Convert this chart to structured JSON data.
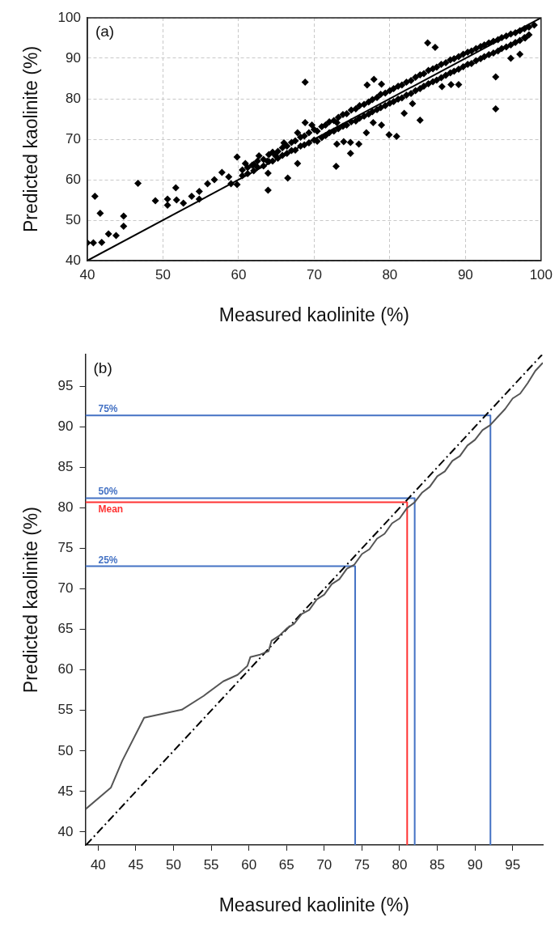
{
  "chart_data": [
    {
      "type": "scatter",
      "xlabel": "Measured kaolinite (%)",
      "ylabel": "Predicted kaolinite (%)",
      "xlim": [
        40,
        100
      ],
      "xticks": [
        40,
        50,
        60,
        70,
        80,
        90,
        100
      ],
      "ylim": [
        40,
        100
      ],
      "yticks": [
        40,
        50,
        60,
        70,
        80,
        90,
        100
      ],
      "grid": true,
      "legend": false,
      "marker": "diamond",
      "annotations": [
        "(a)"
      ],
      "series": [
        {
          "color": "#000000",
          "x": [
            40,
            40.8,
            41.9,
            41,
            41.7,
            42.8,
            43.8,
            44.8,
            44.8,
            46.7,
            49,
            50.6,
            50.6,
            51.7,
            51.8,
            52.7,
            53.8,
            54.8,
            54.8,
            55.9,
            56.8,
            57.8,
            58.7,
            59,
            59.8,
            59.8,
            60.9,
            61.8,
            62.7,
            63.8,
            63.9,
            63.9,
            64.9,
            66,
            66.5,
            67.8,
            67.8,
            68.8,
            68.8,
            69.7,
            73,
            73,
            72.9,
            73.9,
            74.8,
            75.9,
            74.8,
            76.9,
            77,
            77.9,
            78.9,
            77.8,
            78.9,
            79.9,
            80.9,
            81.9,
            83,
            84,
            85,
            86,
            86.9,
            88.1,
            89.1,
            94,
            94,
            96,
            97.2,
            97.9,
            99.1,
            60.5,
            61.2,
            62,
            62.5,
            63.3,
            64,
            64.5,
            65.2,
            65.8,
            66.4,
            67,
            67.5,
            68.2,
            68.7,
            69.3,
            70,
            70.4,
            71,
            71.5,
            72,
            72.6,
            73.2,
            73.8,
            74.3,
            74.9,
            75.5,
            76,
            76.6,
            77.2,
            77.7,
            78.3,
            78.8,
            79.4,
            80,
            80.5,
            81.1,
            81.6,
            82.2,
            82.8,
            83.4,
            84,
            84.5,
            85.1,
            85.7,
            86.2,
            86.8,
            87.4,
            88,
            88.5,
            89.1,
            89.7,
            90.3,
            90.8,
            91.4,
            92,
            92.5,
            93.1,
            93.7,
            94.3,
            94.8,
            95.4,
            96,
            96.6,
            97.2,
            97.8,
            98.4,
            60.5,
            61.2,
            62,
            62.5,
            63.3,
            64,
            64.5,
            65.2,
            65.8,
            66.4,
            67,
            67.5,
            68.2,
            68.7,
            69.3,
            70,
            70.4,
            71,
            71.5,
            72,
            72.6,
            73.2,
            73.8,
            74.3,
            74.9,
            75.5,
            76,
            76.6,
            77.2,
            77.7,
            78.3,
            78.8,
            79.4,
            80,
            80.5,
            81.1,
            81.6,
            82.2,
            82.8,
            83.4,
            84,
            84.5,
            85.1,
            85.7,
            86.2,
            86.8,
            87.4,
            88,
            88.5,
            89.1,
            89.7,
            90.3,
            90.8,
            91.4,
            92,
            92.5,
            93.1,
            93.7,
            94.3,
            94.8,
            95.4,
            96,
            96.6,
            97.2,
            97.8,
            98.4
          ],
          "values": [
            44.4,
            44.4,
            44.5,
            55.9,
            51.7,
            46.6,
            46.2,
            51,
            48.5,
            59.1,
            54.8,
            55.2,
            53.7,
            58,
            55,
            54.2,
            55.9,
            57.1,
            55.2,
            59,
            60,
            61.8,
            60.7,
            59,
            58.8,
            65.6,
            64,
            63.6,
            65.9,
            64.6,
            61.6,
            57.4,
            65.9,
            69.1,
            60.4,
            64,
            71.6,
            84.1,
            74.1,
            73.5,
            74.1,
            68.8,
            63.3,
            69.4,
            69.2,
            68.8,
            66.5,
            71.6,
            83.4,
            84.8,
            83.6,
            74.1,
            73.5,
            71.1,
            70.7,
            76.4,
            78.8,
            74.7,
            93.8,
            92.7,
            83,
            83.5,
            83.5,
            85.4,
            77.5,
            90,
            91,
            95,
            98.2,
            62.4,
            63,
            63.8,
            64.6,
            65,
            66.2,
            66.8,
            67,
            67.9,
            68.3,
            69.2,
            69.6,
            70.5,
            70.8,
            71.6,
            72.4,
            72,
            73.1,
            73.5,
            74.3,
            74.6,
            75.4,
            76.1,
            76.3,
            77.2,
            77.5,
            78.3,
            78.6,
            79.2,
            79.8,
            80.3,
            81.1,
            81.4,
            82,
            82.5,
            83.1,
            83.4,
            84.1,
            84.5,
            85.3,
            85.9,
            86.2,
            87,
            87.4,
            87.8,
            88.5,
            88.9,
            89.6,
            89.9,
            90.4,
            91,
            91.5,
            91.8,
            92.4,
            92.9,
            93.3,
            93.8,
            94.2,
            94.6,
            95.1,
            95.5,
            96,
            96.3,
            96.8,
            97.3,
            97.7,
            61,
            61.5,
            62.2,
            63.1,
            63.4,
            64.5,
            64.6,
            65.3,
            66,
            66.5,
            67.2,
            67.3,
            68.3,
            68.6,
            69.1,
            69.8,
            69.5,
            70.4,
            70.9,
            71.6,
            72,
            72.6,
            73.2,
            73.5,
            74.3,
            74.5,
            75.2,
            75.7,
            76.2,
            76.8,
            77.3,
            77.8,
            78.3,
            78.9,
            79.3,
            79.9,
            80.2,
            80.9,
            81.3,
            82,
            82.5,
            83.1,
            83.7,
            84.2,
            84.6,
            85.2,
            85.8,
            86.4,
            86.8,
            87.3,
            87.9,
            88.5,
            88.7,
            89.4,
            89.9,
            90.4,
            90.9,
            91.3,
            91.8,
            92.4,
            92.8,
            93.3,
            93.9,
            94.4,
            95.1,
            95.8
          ]
        },
        {
          "type": "line",
          "color": "#000000",
          "marker": "none",
          "line_style": "solid",
          "x": [
            40,
            100
          ],
          "values": [
            40,
            100
          ]
        }
      ]
    },
    {
      "type": "line",
      "xlabel": "Measured kaolinite (%)",
      "ylabel": "Predicted kaolinite (%)",
      "xlim": [
        38.3,
        99
      ],
      "xticks": [
        40,
        45,
        50,
        55,
        60,
        65,
        70,
        75,
        80,
        85,
        90,
        95
      ],
      "ylim": [
        38.4,
        98.9
      ],
      "yticks": [
        40,
        45,
        50,
        55,
        60,
        65,
        70,
        75,
        80,
        85,
        90,
        95
      ],
      "legend": false,
      "marker": "none",
      "annotations": [
        "(b)"
      ],
      "series": [
        {
          "color": "#555555",
          "line_style": "solid",
          "x": [
            38.3,
            41.7,
            43.2,
            46.1,
            51.1,
            54,
            56.6,
            58.5,
            59.8,
            60.2,
            61.5,
            62.6,
            63,
            64,
            65,
            66,
            67,
            68,
            69,
            70,
            71,
            72,
            73,
            74,
            75,
            76,
            77,
            78,
            79,
            80,
            81,
            82,
            83,
            84,
            85,
            86,
            87,
            88,
            89,
            90,
            91,
            92,
            93,
            94,
            95,
            96,
            97,
            98,
            99
          ],
          "values": [
            42.8,
            45.5,
            48.8,
            54.1,
            55.1,
            56.8,
            58.6,
            59.4,
            60.5,
            61.6,
            61.9,
            62.3,
            63.6,
            64.2,
            65.1,
            65.7,
            66.9,
            67.4,
            68.7,
            69.3,
            70.6,
            71.2,
            72.5,
            73,
            74.3,
            74.9,
            76.2,
            76.8,
            78.1,
            78.7,
            80,
            80.7,
            81.9,
            82.6,
            83.9,
            84.5,
            85.8,
            86.4,
            87.7,
            88.4,
            89.6,
            90.2,
            91.2,
            92.2,
            93.5,
            94.1,
            95.4,
            96.9,
            97.9
          ]
        },
        {
          "color": "#000000",
          "line_style": "dashed",
          "x": [
            38.4,
            98.9
          ],
          "values": [
            38.4,
            98.9
          ]
        },
        {
          "name": "75%",
          "color": "#4472c4",
          "line_style": "solid",
          "x": [
            38.3,
            92.05,
            92.05
          ],
          "values": [
            91.4,
            91.4,
            38.4
          ]
        },
        {
          "name": "50%",
          "color": "#4472c4",
          "line_style": "solid",
          "x": [
            38.3,
            82,
            82
          ],
          "values": [
            81.2,
            81.2,
            38.4
          ]
        },
        {
          "name": "Mean",
          "color": "#ff3333",
          "line_style": "solid",
          "x": [
            38.3,
            81,
            81
          ],
          "values": [
            80.7,
            80.7,
            38.4
          ]
        },
        {
          "name": "25%",
          "color": "#4472c4",
          "line_style": "solid",
          "x": [
            38.3,
            74.1,
            74.1
          ],
          "values": [
            72.8,
            72.8,
            38.4
          ]
        }
      ]
    }
  ]
}
